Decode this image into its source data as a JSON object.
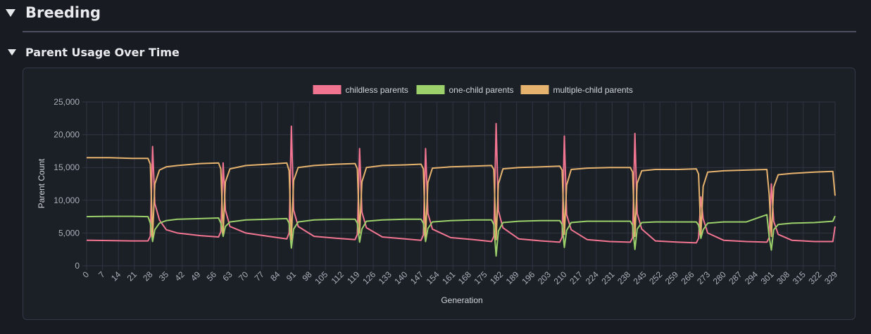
{
  "section": {
    "title": "Breeding",
    "subtitle": "Parent Usage Over Time"
  },
  "colors": {
    "childless": "#f17590",
    "one_child": "#9bd06a",
    "multiple_child": "#e6b36e",
    "grid": "#303542",
    "axis_text": "#aab0bb"
  },
  "chart_data": {
    "type": "line",
    "title": "",
    "xlabel": "Generation",
    "ylabel": "Parent Count",
    "xlim": [
      0,
      329
    ],
    "ylim": [
      0,
      25000
    ],
    "y_ticks": [
      0,
      5000,
      10000,
      15000,
      20000,
      25000
    ],
    "y_tick_labels": [
      "0",
      "5,000",
      "10,000",
      "15,000",
      "20,000",
      "25,000"
    ],
    "x_ticks": [
      0,
      7,
      14,
      21,
      28,
      35,
      42,
      49,
      56,
      63,
      70,
      77,
      84,
      91,
      98,
      105,
      112,
      119,
      126,
      133,
      140,
      147,
      154,
      161,
      168,
      175,
      182,
      189,
      196,
      203,
      210,
      217,
      224,
      231,
      238,
      245,
      252,
      259,
      266,
      273,
      280,
      287,
      294,
      301,
      308,
      315,
      322,
      329
    ],
    "grid": true,
    "legend_position": "top-center",
    "series": [
      {
        "name": "childless parents",
        "x": [
          0,
          10,
          20,
          27,
          28,
          29,
          30,
          32,
          35,
          40,
          50,
          58,
          59,
          60,
          61,
          63,
          70,
          80,
          88,
          89,
          90,
          91,
          93,
          100,
          110,
          118,
          119,
          120,
          121,
          123,
          130,
          140,
          147,
          148,
          149,
          150,
          152,
          160,
          170,
          178,
          179,
          180,
          181,
          183,
          190,
          200,
          208,
          209,
          210,
          211,
          213,
          220,
          230,
          239,
          240,
          241,
          242,
          244,
          250,
          260,
          268,
          269,
          270,
          271,
          273,
          280,
          290,
          299,
          300,
          301,
          302,
          304,
          310,
          320,
          328,
          329
        ],
        "y": [
          3900,
          3850,
          3800,
          3800,
          4500,
          18200,
          9500,
          7000,
          5500,
          5000,
          4600,
          4400,
          5200,
          15700,
          8500,
          6000,
          5000,
          4500,
          4100,
          5000,
          21300,
          8500,
          6000,
          4500,
          4200,
          4000,
          4800,
          17900,
          8200,
          5800,
          4400,
          4100,
          3900,
          4700,
          17900,
          8000,
          5600,
          4300,
          4000,
          3700,
          4500,
          21700,
          8400,
          5800,
          4100,
          3800,
          3600,
          4400,
          19800,
          7800,
          5500,
          4000,
          3700,
          3600,
          4300,
          20200,
          8000,
          5600,
          3800,
          3600,
          3500,
          4200,
          10500,
          7200,
          5000,
          3900,
          3700,
          3600,
          4300,
          12500,
          6800,
          4800,
          3900,
          3700,
          3700,
          6000
        ]
      },
      {
        "name": "one-child parents",
        "x": [
          0,
          10,
          20,
          27,
          28,
          29,
          30,
          32,
          35,
          40,
          50,
          58,
          59,
          60,
          61,
          63,
          70,
          80,
          88,
          89,
          90,
          91,
          93,
          100,
          110,
          118,
          119,
          120,
          121,
          123,
          130,
          140,
          147,
          148,
          149,
          150,
          152,
          160,
          170,
          178,
          179,
          180,
          181,
          183,
          190,
          200,
          208,
          209,
          210,
          211,
          213,
          220,
          230,
          239,
          240,
          241,
          242,
          244,
          250,
          260,
          268,
          269,
          270,
          271,
          273,
          280,
          290,
          299,
          300,
          301,
          302,
          304,
          310,
          320,
          328,
          329
        ],
        "y": [
          7500,
          7550,
          7550,
          7500,
          6500,
          3700,
          5500,
          6500,
          6900,
          7100,
          7200,
          7300,
          6500,
          4500,
          6000,
          6700,
          7000,
          7100,
          7200,
          6500,
          2700,
          5600,
          6700,
          7000,
          7100,
          7100,
          6500,
          3600,
          5600,
          6800,
          7000,
          7100,
          7100,
          6500,
          3700,
          5700,
          6700,
          6900,
          7000,
          7000,
          6300,
          1500,
          5300,
          6600,
          6800,
          6900,
          6900,
          6300,
          2800,
          5400,
          6600,
          6800,
          6800,
          6800,
          6200,
          2500,
          5600,
          6600,
          6700,
          6700,
          6700,
          6200,
          4200,
          5500,
          6500,
          6700,
          6700,
          7800,
          4500,
          2400,
          5500,
          6300,
          6500,
          6600,
          6800,
          7600
        ]
      },
      {
        "name": "multiple-child parents",
        "x": [
          0,
          10,
          20,
          27,
          28,
          29,
          30,
          32,
          35,
          40,
          50,
          58,
          59,
          60,
          61,
          63,
          70,
          80,
          88,
          89,
          90,
          91,
          93,
          100,
          110,
          118,
          119,
          120,
          121,
          123,
          130,
          140,
          147,
          148,
          149,
          150,
          152,
          160,
          170,
          178,
          179,
          180,
          181,
          183,
          190,
          200,
          208,
          209,
          210,
          211,
          213,
          220,
          230,
          239,
          240,
          241,
          242,
          244,
          250,
          260,
          268,
          269,
          270,
          271,
          273,
          280,
          290,
          299,
          300,
          301,
          302,
          304,
          310,
          320,
          328,
          329
        ],
        "y": [
          16500,
          16500,
          16400,
          16400,
          15500,
          4500,
          12500,
          14600,
          15100,
          15300,
          15600,
          15700,
          14800,
          5000,
          12800,
          14800,
          15300,
          15500,
          15700,
          14500,
          4000,
          13000,
          15000,
          15300,
          15500,
          15600,
          14800,
          5000,
          12800,
          15000,
          15300,
          15400,
          15500,
          14800,
          4500,
          12700,
          14900,
          15100,
          15200,
          15300,
          14700,
          4000,
          12500,
          14800,
          15000,
          15100,
          15200,
          14600,
          4800,
          12300,
          14700,
          14900,
          15000,
          15000,
          14300,
          4500,
          12600,
          14500,
          14700,
          14700,
          14800,
          14000,
          4800,
          12100,
          14300,
          14500,
          14600,
          14700,
          11000,
          4500,
          12000,
          13900,
          14100,
          14300,
          14400,
          10700
        ]
      }
    ]
  }
}
